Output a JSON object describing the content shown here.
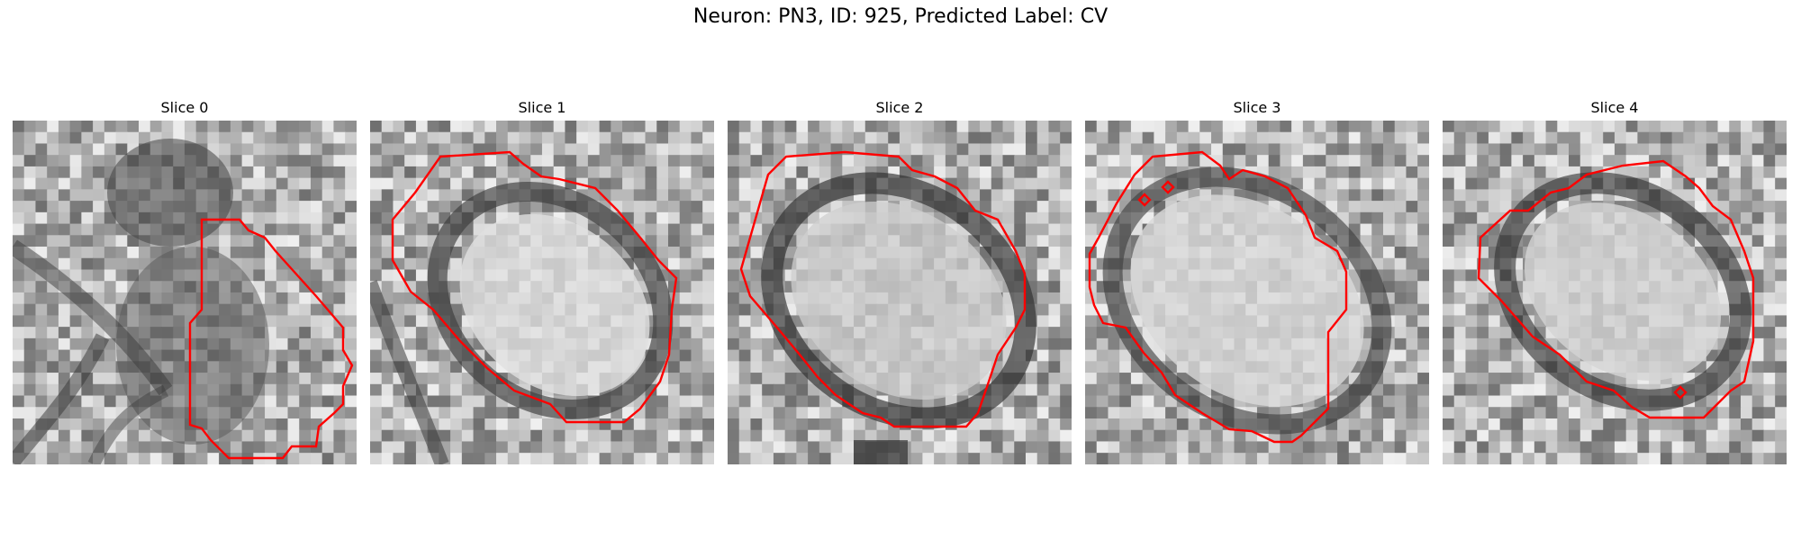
{
  "figure": {
    "title": "Neuron: PN3, ID: 925, Predicted Label: CV"
  },
  "panels": [
    {
      "title": "Slice 0"
    },
    {
      "title": "Slice 1"
    },
    {
      "title": "Slice 2"
    },
    {
      "title": "Slice 3"
    },
    {
      "title": "Slice 4"
    }
  ],
  "style": {
    "contour_color": "#ff0000",
    "colormap": "grayscale"
  }
}
